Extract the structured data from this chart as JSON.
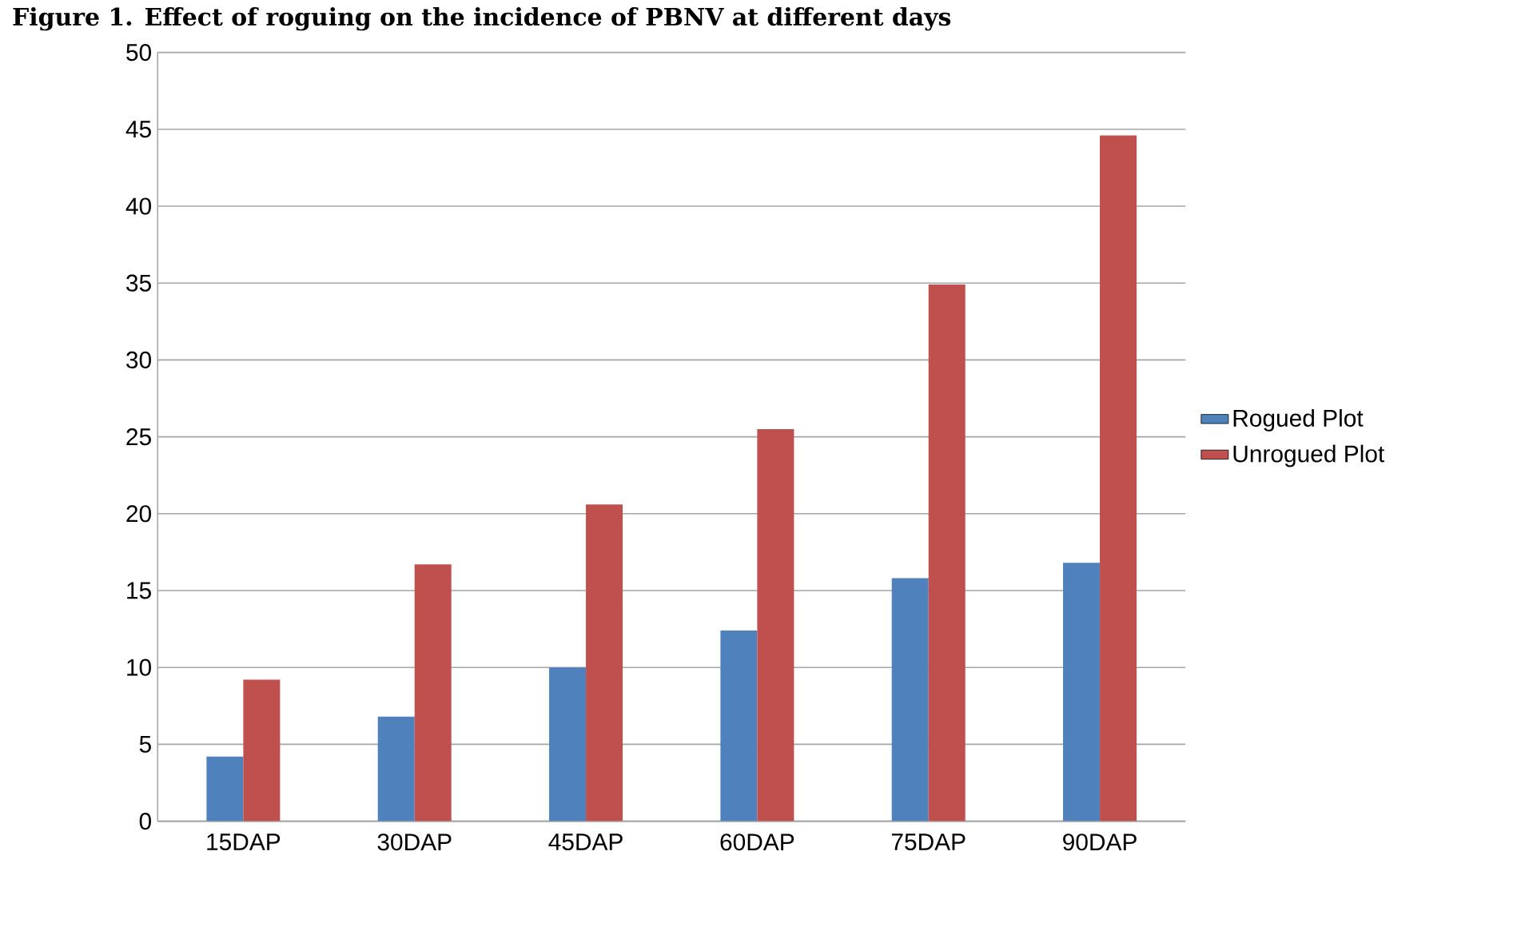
{
  "chart_data": {
    "type": "bar",
    "title": "Figure 1. Effect of roguing on the incidence of PBNV at different days",
    "categories": [
      "15DAP",
      "30DAP",
      "45DAP",
      "60DAP",
      "75DAP",
      "90DAP"
    ],
    "series": [
      {
        "name": "Rogued Plot",
        "color": "#4f81bd",
        "values": [
          4.2,
          6.8,
          10.0,
          12.4,
          15.8,
          16.8
        ]
      },
      {
        "name": "Unrogued Plot",
        "color": "#c0504d",
        "values": [
          9.2,
          16.7,
          20.6,
          25.5,
          34.9,
          44.6
        ]
      }
    ],
    "ylim": [
      0,
      50
    ],
    "yticks": [
      0,
      5,
      10,
      15,
      20,
      25,
      30,
      35,
      40,
      45,
      50
    ],
    "grid": "y",
    "legend": "right"
  }
}
